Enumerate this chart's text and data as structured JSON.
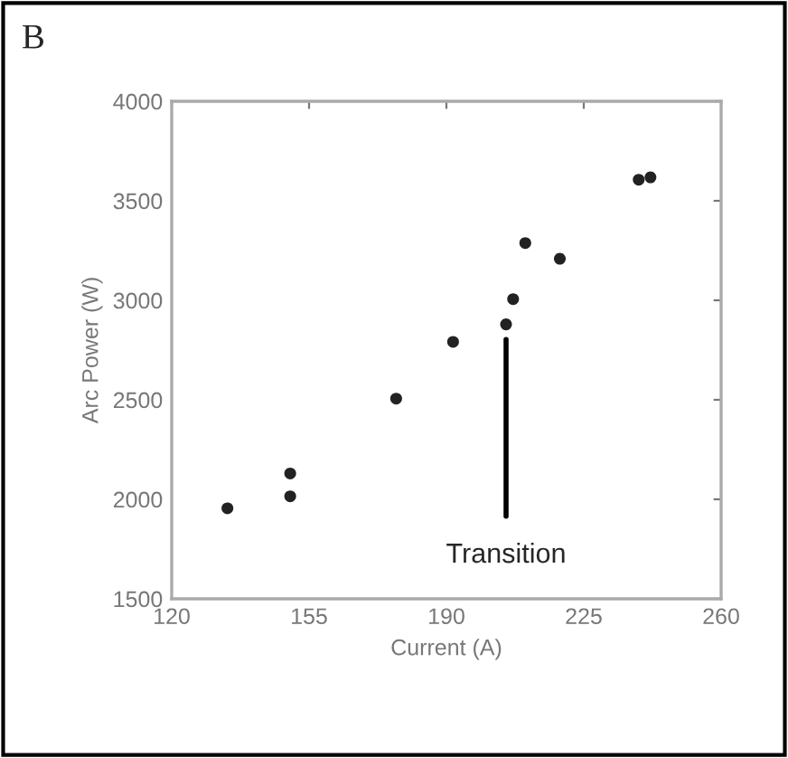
{
  "chart_data": {
    "type": "scatter",
    "title": "B",
    "xlabel": "Current (A)",
    "ylabel": "Arc Power (W)",
    "x": [
      134.2,
      150.2,
      150.2,
      177.2,
      191.7,
      205.2,
      207,
      210.1,
      218.9,
      239,
      242
    ],
    "values": [
      1955,
      2130,
      2015,
      2506,
      2791,
      2879,
      3006,
      3288,
      3209,
      3606,
      3618
    ],
    "color": "#222222",
    "marker": "circle",
    "xlim": [
      120,
      260
    ],
    "xticks": [
      120,
      155,
      190,
      225,
      260
    ],
    "ylim": [
      1500,
      4000
    ],
    "yticks": [
      1500,
      2000,
      2500,
      3000,
      3500,
      4000
    ],
    "grid": false,
    "annotations": [
      {
        "text": "Transition",
        "x": 205.2,
        "y": 2879
      }
    ]
  }
}
